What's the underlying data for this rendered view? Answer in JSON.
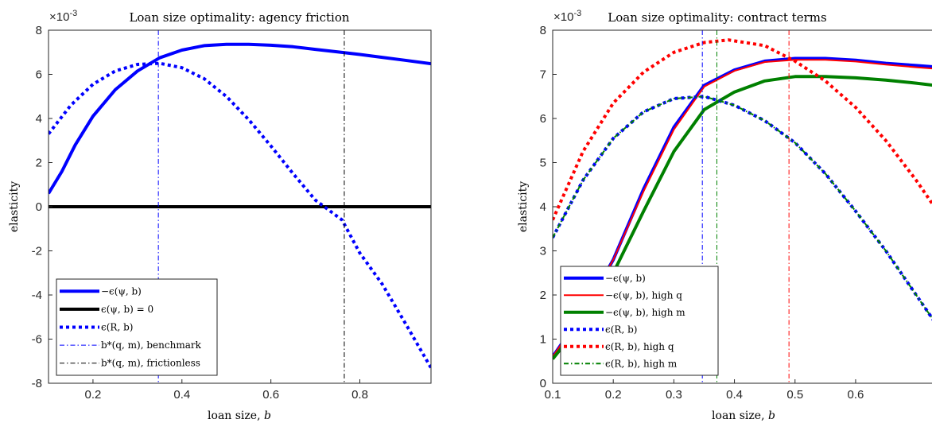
{
  "chart_data": [
    {
      "type": "line",
      "title": "Loan size optimality: agency friction",
      "xlabel": "loan size, b",
      "ylabel": "elasticity",
      "exponent_label": "×10-3",
      "xlim": [
        0.1,
        0.96
      ],
      "ylim": [
        -8,
        8
      ],
      "xticks": [
        0.2,
        0.4,
        0.6,
        0.8
      ],
      "xtick_labels": [
        "0.2",
        "0.4",
        "0.6",
        "0.8"
      ],
      "yticks": [
        -8,
        -6,
        -4,
        -2,
        0,
        2,
        4,
        6,
        8
      ],
      "ytick_labels": [
        "-8",
        "-6",
        "-4",
        "-2",
        "0",
        "2",
        "4",
        "6",
        "8"
      ],
      "legend_position": "bottom-left",
      "series": [
        {
          "name": "−ϵ(ψ, b)",
          "color": "#0000ff",
          "style": "solid",
          "width": 4,
          "x": [
            0.1,
            0.13,
            0.16,
            0.2,
            0.25,
            0.3,
            0.35,
            0.4,
            0.45,
            0.5,
            0.55,
            0.6,
            0.65,
            0.7,
            0.75,
            0.8,
            0.85,
            0.9,
            0.96
          ],
          "y": [
            0.6,
            1.6,
            2.8,
            4.1,
            5.3,
            6.15,
            6.75,
            7.1,
            7.3,
            7.36,
            7.36,
            7.32,
            7.25,
            7.13,
            7.02,
            6.9,
            6.77,
            6.64,
            6.48
          ]
        },
        {
          "name": "ϵ(ψ, b) = 0",
          "color": "#000000",
          "style": "solid",
          "width": 4,
          "x": [
            0.1,
            0.96
          ],
          "y": [
            0,
            0
          ]
        },
        {
          "name": "ϵ(R, b)",
          "color": "#0000ff",
          "style": "dotted",
          "width": 4,
          "x": [
            0.1,
            0.15,
            0.2,
            0.25,
            0.3,
            0.35,
            0.4,
            0.45,
            0.5,
            0.55,
            0.6,
            0.65,
            0.7,
            0.76,
            0.8,
            0.85,
            0.9,
            0.96
          ],
          "y": [
            3.3,
            4.6,
            5.55,
            6.15,
            6.45,
            6.5,
            6.3,
            5.8,
            5.0,
            3.95,
            2.75,
            1.5,
            0.3,
            -0.6,
            -2.1,
            -3.5,
            -5.2,
            -7.3
          ]
        },
        {
          "name": "b*(q, m), benchmark",
          "color": "#0000ff",
          "style": "dashdot",
          "width": 1,
          "vline": 0.347
        },
        {
          "name": "b*(q, m), frictionless",
          "color": "#000000",
          "style": "dashdot",
          "width": 1,
          "vline": 0.765
        }
      ]
    },
    {
      "type": "line",
      "title": "Loan size optimality: contract terms",
      "xlabel": "loan size, b",
      "ylabel": "elasticity",
      "exponent_label": "×10-3",
      "xlim": [
        0.1,
        0.73
      ],
      "ylim": [
        0,
        8
      ],
      "xticks": [
        0.1,
        0.2,
        0.3,
        0.4,
        0.5,
        0.6
      ],
      "xtick_labels": [
        "0.1",
        "0.2",
        "0.3",
        "0.4",
        "0.5",
        "0.6"
      ],
      "yticks": [
        0,
        1,
        2,
        3,
        4,
        5,
        6,
        7,
        8
      ],
      "ytick_labels": [
        "0",
        "1",
        "2",
        "3",
        "4",
        "5",
        "6",
        "7",
        "8"
      ],
      "legend_position": "bottom-left",
      "series": [
        {
          "name": "−ϵ(ψ, b)",
          "color": "#0000ff",
          "style": "solid",
          "width": 4,
          "x": [
            0.1,
            0.15,
            0.2,
            0.25,
            0.3,
            0.35,
            0.4,
            0.45,
            0.5,
            0.55,
            0.6,
            0.65,
            0.7,
            0.73
          ],
          "y": [
            0.6,
            1.6,
            2.8,
            4.4,
            5.8,
            6.75,
            7.1,
            7.3,
            7.36,
            7.36,
            7.32,
            7.25,
            7.2,
            7.17
          ]
        },
        {
          "name": "−ϵ(ψ, b), high q",
          "color": "#ff0000",
          "style": "solid",
          "width": 2,
          "x": [
            0.1,
            0.15,
            0.2,
            0.25,
            0.3,
            0.35,
            0.4,
            0.45,
            0.5,
            0.55,
            0.6,
            0.65,
            0.7,
            0.73
          ],
          "y": [
            0.6,
            1.6,
            2.8,
            4.35,
            5.75,
            6.72,
            7.08,
            7.28,
            7.33,
            7.33,
            7.29,
            7.22,
            7.16,
            7.13
          ]
        },
        {
          "name": "−ϵ(ψ, b), high m",
          "color": "#008000",
          "style": "solid",
          "width": 4,
          "x": [
            0.1,
            0.15,
            0.2,
            0.25,
            0.3,
            0.35,
            0.4,
            0.45,
            0.5,
            0.55,
            0.6,
            0.65,
            0.7,
            0.73
          ],
          "y": [
            0.55,
            1.4,
            2.5,
            3.9,
            5.25,
            6.2,
            6.6,
            6.85,
            6.95,
            6.95,
            6.92,
            6.87,
            6.8,
            6.75
          ]
        },
        {
          "name": "ϵ(R, b)",
          "color": "#0000ff",
          "style": "dotted",
          "width": 4,
          "x": [
            0.1,
            0.15,
            0.2,
            0.25,
            0.3,
            0.35,
            0.4,
            0.45,
            0.5,
            0.55,
            0.6,
            0.65,
            0.7,
            0.73
          ],
          "y": [
            3.3,
            4.6,
            5.55,
            6.15,
            6.45,
            6.5,
            6.3,
            5.95,
            5.45,
            4.75,
            3.9,
            3.0,
            2.0,
            1.4
          ]
        },
        {
          "name": "ϵ(R, b), high q",
          "color": "#ff0000",
          "style": "dotted",
          "width": 4,
          "x": [
            0.1,
            0.15,
            0.2,
            0.25,
            0.3,
            0.35,
            0.39,
            0.45,
            0.5,
            0.55,
            0.6,
            0.65,
            0.7,
            0.73
          ],
          "y": [
            3.7,
            5.25,
            6.35,
            7.05,
            7.5,
            7.72,
            7.78,
            7.65,
            7.3,
            6.85,
            6.25,
            5.5,
            4.6,
            4.0
          ]
        },
        {
          "name": "ϵ(R, b), high m",
          "color": "#008000",
          "style": "dashdot",
          "width": 2,
          "x": [
            0.1,
            0.15,
            0.2,
            0.25,
            0.3,
            0.35,
            0.4,
            0.45,
            0.5,
            0.55,
            0.6,
            0.65,
            0.7,
            0.73
          ],
          "y": [
            3.3,
            4.6,
            5.55,
            6.15,
            6.45,
            6.5,
            6.3,
            5.95,
            5.45,
            4.75,
            3.9,
            3.0,
            2.0,
            1.4
          ]
        },
        {
          "name": "",
          "color": "#0000ff",
          "style": "dashdot",
          "width": 1,
          "vline": 0.347
        },
        {
          "name": "",
          "color": "#008000",
          "style": "dashdot",
          "width": 1,
          "vline": 0.371
        },
        {
          "name": "",
          "color": "#ff0000",
          "style": "dashdot",
          "width": 1,
          "vline": 0.49
        }
      ]
    }
  ]
}
